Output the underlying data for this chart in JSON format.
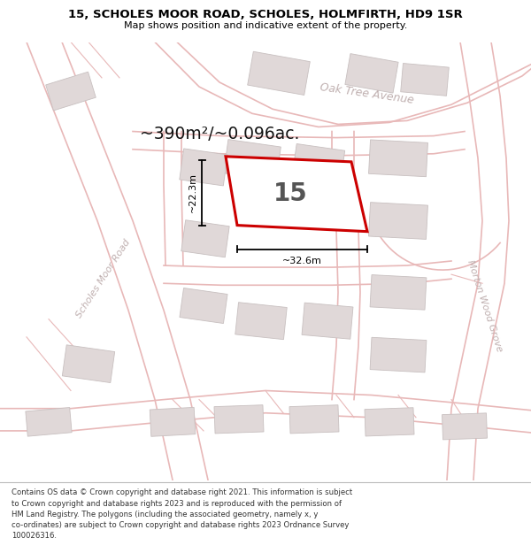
{
  "title_line1": "15, SCHOLES MOOR ROAD, SCHOLES, HOLMFIRTH, HD9 1SR",
  "title_line2": "Map shows position and indicative extent of the property.",
  "area_label": "~390m²/~0.096ac.",
  "plot_number": "15",
  "dim_width": "~32.6m",
  "dim_height": "~22.3m",
  "road_label_left": "Scholes Moor Road",
  "road_label_top": "Oak Tree Avenue",
  "road_label_right": "Morton Wood Grove",
  "footer_text": "Contains OS data © Crown copyright and database right 2021. This information is subject\nto Crown copyright and database rights 2023 and is reproduced with the permission of\nHM Land Registry. The polygons (including the associated geometry, namely x, y\nco-ordinates) are subject to Crown copyright and database rights 2023 Ordnance Survey\n100026316.",
  "bg_color": "#ffffff",
  "map_bg": "#ffffff",
  "road_line_color": "#e8b8b8",
  "road_line_color2": "#ddaaaa",
  "plot_fill": "#ffffff",
  "plot_border": "#cc0000",
  "building_fill": "#e0d8d8",
  "building_edge": "#c8c0c0",
  "dim_color": "#000000",
  "road_text_color": "#c0b0b0",
  "title_color": "#000000",
  "footer_color": "#333333",
  "gray_road_color": "#cccccc",
  "gray_road_fill": "#e8e8e8"
}
